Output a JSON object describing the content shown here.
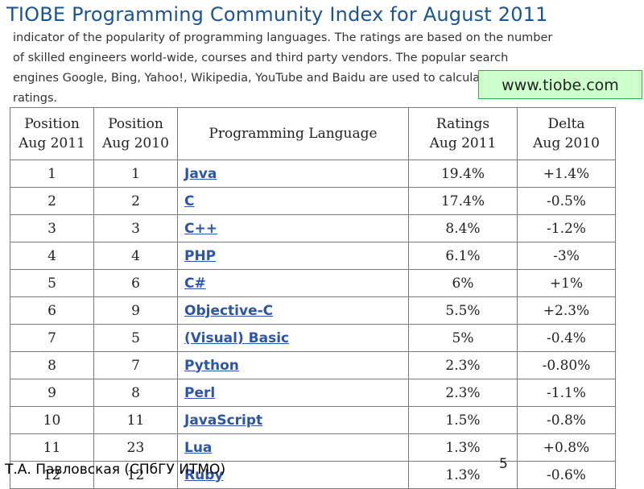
{
  "slide": {
    "title": "TIOBE Programming Community Index for August 2011",
    "description_lines": [
      "indicator of the popularity of programming languages. The ratings are based on the number",
      "of skilled engineers world-wide, courses and third party vendors. The popular search",
      "engines Google, Bing, Yahoo!, Wikipedia, YouTube and Baidu are used to calculate the",
      "ratings."
    ],
    "link_box": "www.tiobe.com",
    "footer": "Т.А. Павловская (СПбГУ ИТМО)",
    "page_number": "5"
  },
  "table": {
    "headers": [
      {
        "line1": "Position",
        "line2": "Aug 2011"
      },
      {
        "line1": "Position",
        "line2": "Aug 2010"
      },
      {
        "line1": "Programming Language",
        "line2": ""
      },
      {
        "line1": "Ratings",
        "line2": "Aug 2011"
      },
      {
        "line1": "Delta",
        "line2": "Aug 2010"
      }
    ],
    "rows": [
      {
        "pos2011": "1",
        "pos2010": "1",
        "language": "Java",
        "rating": "19.4%",
        "delta": "+1.4%"
      },
      {
        "pos2011": "2",
        "pos2010": "2",
        "language": "C",
        "rating": "17.4%",
        "delta": "-0.5%"
      },
      {
        "pos2011": "3",
        "pos2010": "3",
        "language": "C++",
        "rating": "8.4%",
        "delta": "-1.2%"
      },
      {
        "pos2011": "4",
        "pos2010": "4",
        "language": "PHP",
        "rating": "6.1%",
        "delta": "-3%"
      },
      {
        "pos2011": "5",
        "pos2010": "6",
        "language": "C#",
        "rating": "6%",
        "delta": "+1%"
      },
      {
        "pos2011": "6",
        "pos2010": "9",
        "language": "Objective-C",
        "rating": "5.5%",
        "delta": "+2.3%"
      },
      {
        "pos2011": "7",
        "pos2010": "5",
        "language": "(Visual) Basic",
        "rating": "5%",
        "delta": "-0.4%"
      },
      {
        "pos2011": "8",
        "pos2010": "7",
        "language": "Python",
        "rating": "2.3%",
        "delta": "-0.80%"
      },
      {
        "pos2011": "9",
        "pos2010": "8",
        "language": "Perl",
        "rating": "2.3%",
        "delta": "-1.1%"
      },
      {
        "pos2011": "10",
        "pos2010": "11",
        "language": "JavaScript",
        "rating": "1.5%",
        "delta": "-0.8%"
      },
      {
        "pos2011": "11",
        "pos2010": "23",
        "language": "Lua",
        "rating": "1.3%",
        "delta": "+0.8%"
      },
      {
        "pos2011": "12",
        "pos2010": "12",
        "language": "Ruby",
        "rating": "1.3%",
        "delta": "-0.6%"
      }
    ]
  }
}
